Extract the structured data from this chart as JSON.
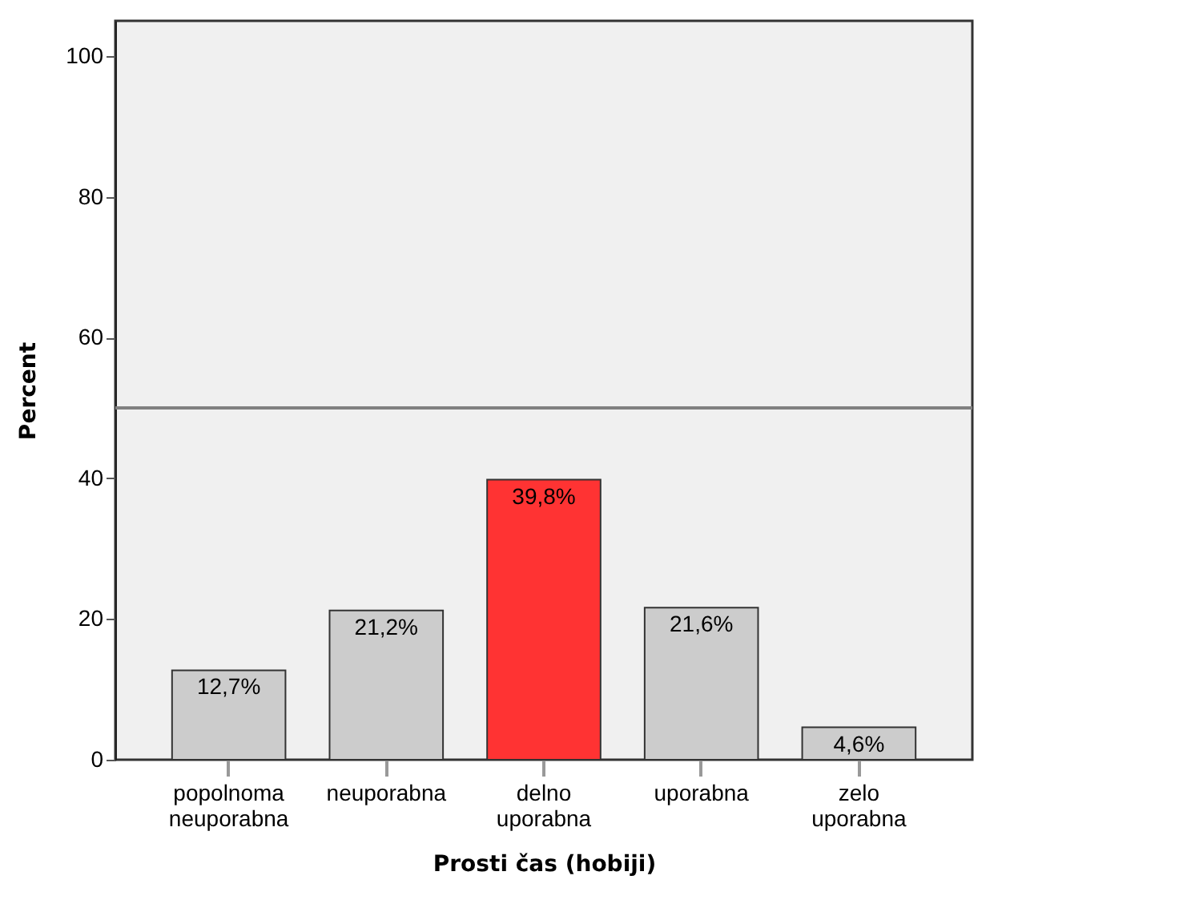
{
  "chart_data": {
    "type": "bar",
    "xlabel": "Prosti čas (hobiji)",
    "ylabel": "Percent",
    "categories": [
      "popolnoma neuporabna",
      "neuporabna",
      "delno uporabna",
      "uporabna",
      "zelo uporabna"
    ],
    "values": [
      12.7,
      21.2,
      39.8,
      21.6,
      4.6
    ],
    "colors": [
      "#cccccc",
      "#cccccc",
      "#ff3333",
      "#cccccc",
      "#cccccc"
    ],
    "value_labels": [
      "12,7%",
      "21,2%",
      "39,8%",
      "21,6%",
      "4,6%"
    ],
    "ylim": [
      0,
      105
    ],
    "yticks": [
      0,
      20,
      40,
      60,
      80,
      100
    ],
    "ref_lines": [
      {
        "axis": "y",
        "value": 50,
        "color": "#808080"
      }
    ],
    "grid": false,
    "legend": false
  }
}
